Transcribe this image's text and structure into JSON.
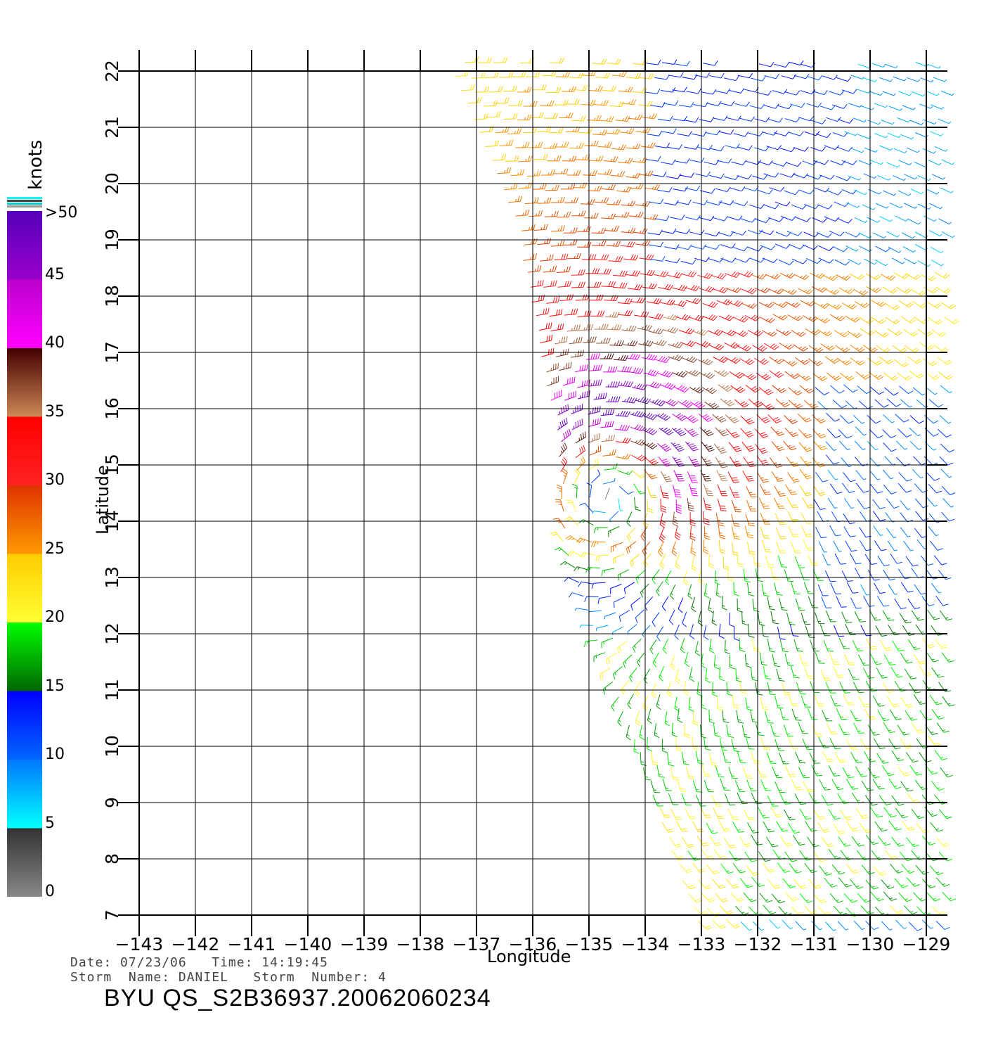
{
  "chart_data": {
    "type": "wind-barb-map",
    "xlabel": "Longitude",
    "ylabel": "Latitude",
    "xlim": [
      -143,
      -129
    ],
    "ylim": [
      7,
      22
    ],
    "x_ticks": [
      "−143",
      "−142",
      "−141",
      "−140",
      "−139",
      "−138",
      "−137",
      "−136",
      "−135",
      "−134",
      "−133",
      "−132",
      "−131",
      "−130",
      "−129"
    ],
    "y_ticks": [
      "7",
      "8",
      "9",
      "10",
      "11",
      "12",
      "13",
      "14",
      "15",
      "16",
      "17",
      "18",
      "19",
      "20",
      "21",
      "22"
    ],
    "grid": true,
    "storm_center": {
      "lon": -134.6,
      "lat": 14.8
    },
    "colorbar": {
      "unit": "knots",
      "labels": [
        {
          "text": ">50",
          "value": 50
        },
        {
          "text": "45",
          "value": 45
        },
        {
          "text": "40",
          "value": 40
        },
        {
          "text": "35",
          "value": 35
        },
        {
          "text": "30",
          "value": 30
        },
        {
          "text": "25",
          "value": 25
        },
        {
          "text": "20",
          "value": 20
        },
        {
          "text": "15",
          "value": 15
        },
        {
          "text": "10",
          "value": 10
        },
        {
          "text": "5",
          "value": 5
        },
        {
          "text": "0",
          "value": 0
        }
      ],
      "bands": [
        {
          "from": 0,
          "to": 5,
          "top": "#333333",
          "bottom": "#888888"
        },
        {
          "from": 5,
          "to": 10,
          "top": "#0077ff",
          "bottom": "#00ffff"
        },
        {
          "from": 10,
          "to": 15,
          "top": "#0000ff",
          "bottom": "#0066ff"
        },
        {
          "from": 15,
          "to": 20,
          "top": "#00ff00",
          "bottom": "#006600"
        },
        {
          "from": 20,
          "to": 25,
          "top": "#ffcc00",
          "bottom": "#ffff33"
        },
        {
          "from": 25,
          "to": 30,
          "top": "#dd3300",
          "bottom": "#ff9900"
        },
        {
          "from": 30,
          "to": 35,
          "top": "#ff0000",
          "bottom": "#ff2222"
        },
        {
          "from": 35,
          "to": 40,
          "top": "#440000",
          "bottom": "#cc8855"
        },
        {
          "from": 40,
          "to": 45,
          "top": "#bb00cc",
          "bottom": "#ff00ff"
        },
        {
          "from": 45,
          "to": 50,
          "top": "#5500bb",
          "bottom": "#9900cc"
        }
      ]
    }
  },
  "info": {
    "date_line": "Date: 07/23/06   Time: 14:19:45",
    "storm_line": "Storm  Name: DANIEL   Storm  Number: 4",
    "title": "BYU  QS_S2B36937.20062060234"
  }
}
